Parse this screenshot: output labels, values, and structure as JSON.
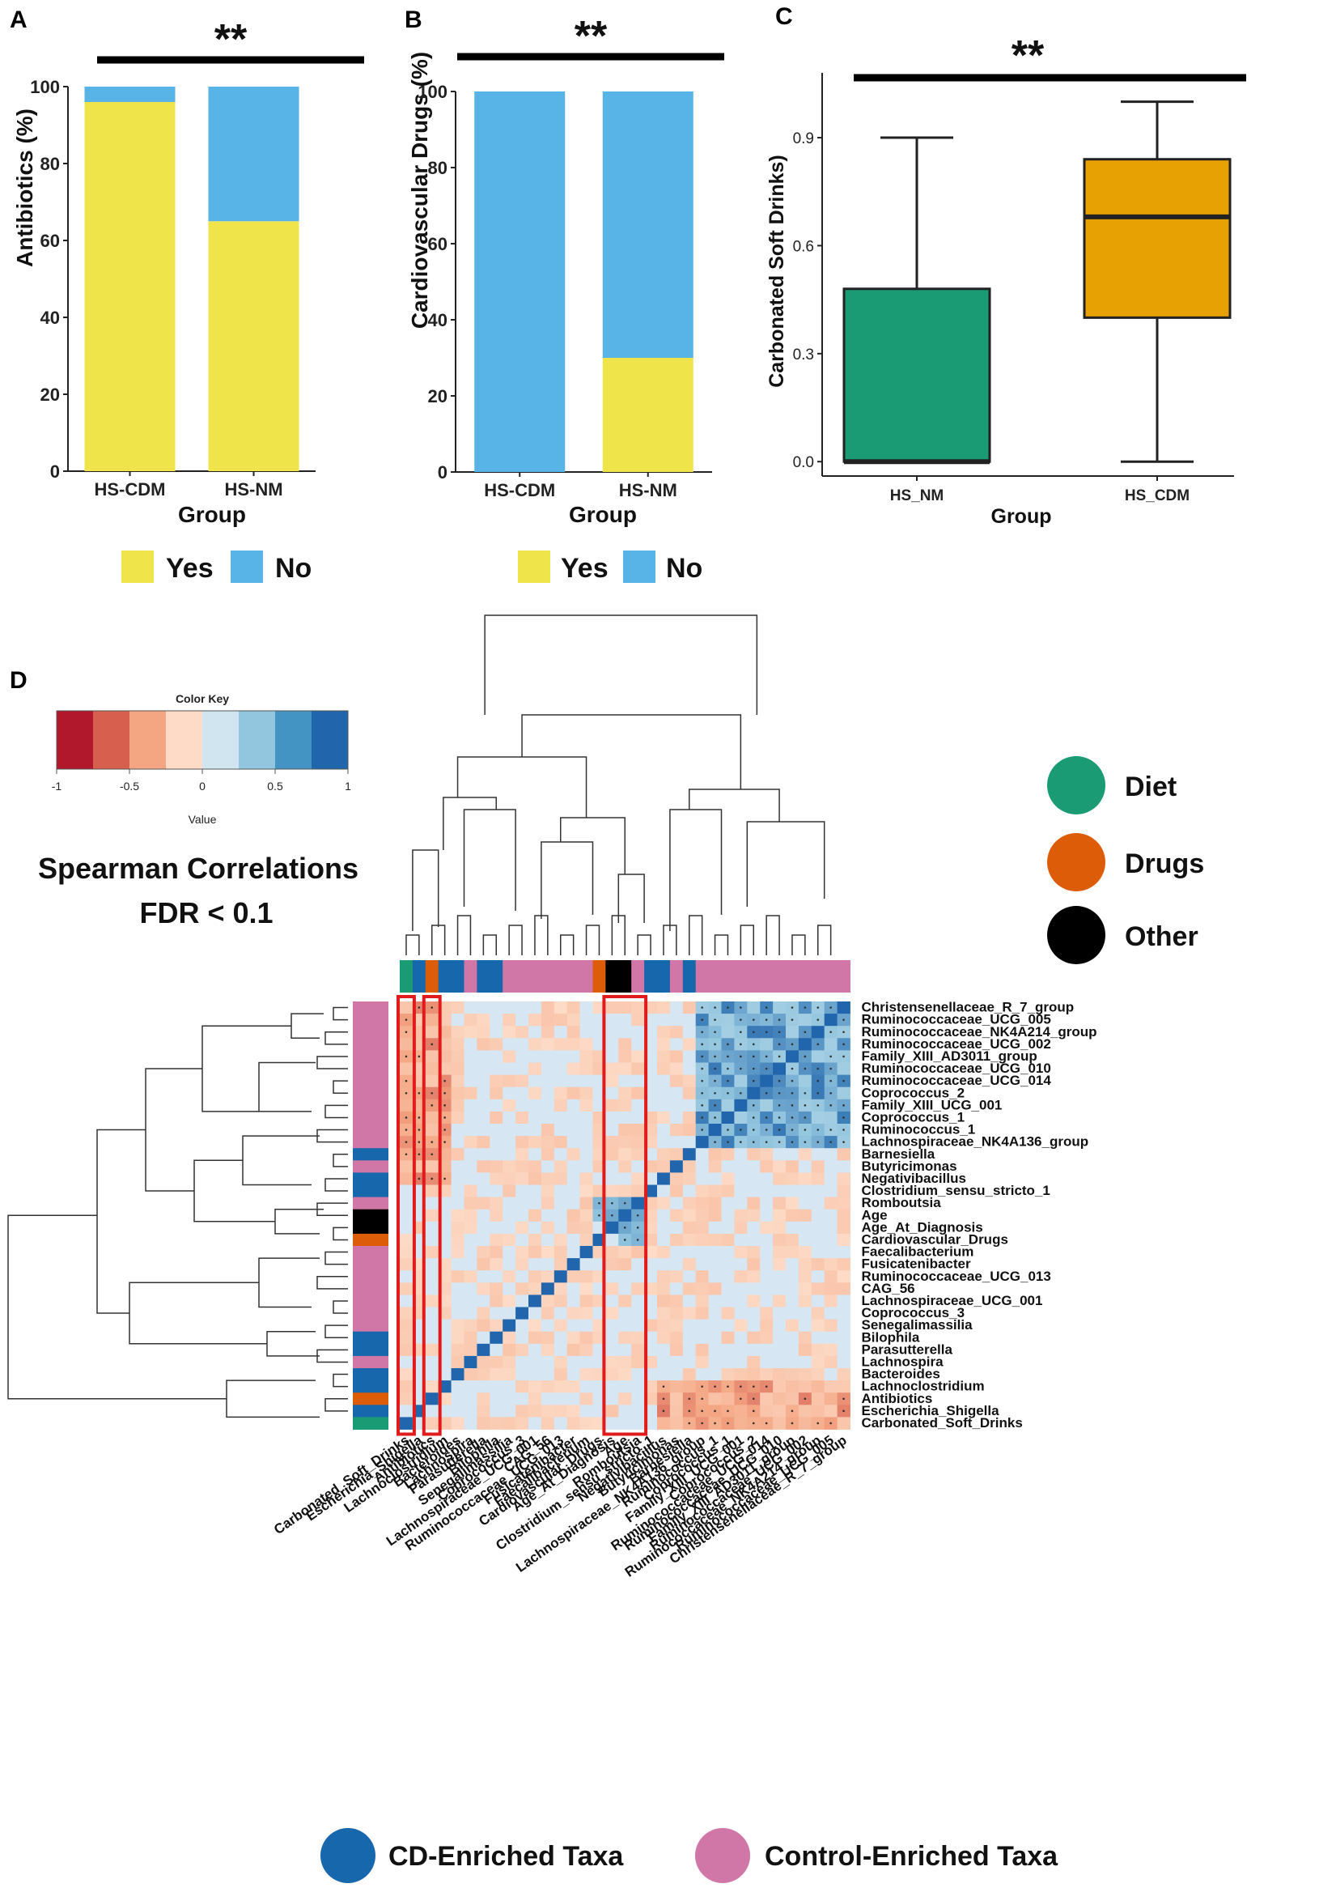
{
  "colors": {
    "yes": "#efe44a",
    "no": "#58b3e6",
    "hs_nm_box": "#1a9b73",
    "hs_cdm_box": "#e8a102",
    "diet": "#1a9b73",
    "drugs": "#dd5c07",
    "other": "#000000",
    "cd_enriched": "#1767ac",
    "control_enriched": "#d177a8",
    "highlight": "#e11b1b"
  },
  "chart_data": [
    {
      "panel": "A",
      "type": "bar",
      "stacked": true,
      "categories": [
        "HS-CDM",
        "HS-NM"
      ],
      "series": [
        {
          "name": "Yes",
          "values": [
            96,
            65
          ]
        },
        {
          "name": "No",
          "values": [
            4,
            35
          ]
        }
      ],
      "xlabel": "Group",
      "ylabel": "Antibiotics (%)",
      "ylim": [
        0,
        100
      ],
      "yticks": [
        "0",
        "20",
        "40",
        "60",
        "80",
        "100"
      ],
      "significance": "**",
      "legend": [
        "Yes",
        "No"
      ]
    },
    {
      "panel": "B",
      "type": "bar",
      "stacked": true,
      "categories": [
        "HS-CDM",
        "HS-NM"
      ],
      "series": [
        {
          "name": "Yes",
          "values": [
            0,
            30
          ]
        },
        {
          "name": "No",
          "values": [
            100,
            70
          ]
        }
      ],
      "xlabel": "Group",
      "ylabel": "Cardiovascular Drugs (%)",
      "ylim": [
        0,
        100
      ],
      "yticks": [
        "0",
        "20",
        "40",
        "60",
        "80",
        "100"
      ],
      "significance": "**",
      "legend": [
        "Yes",
        "No"
      ]
    },
    {
      "panel": "C",
      "type": "box",
      "categories": [
        "HS_NM",
        "HS_CDM"
      ],
      "boxes": [
        {
          "name": "HS_NM",
          "min": 0.0,
          "q1": 0.0,
          "median": 0.0,
          "q3": 0.48,
          "max": 0.9
        },
        {
          "name": "HS_CDM",
          "min": 0.0,
          "q1": 0.4,
          "median": 0.68,
          "q3": 0.84,
          "max": 1.0
        }
      ],
      "xlabel": "Group",
      "ylabel": "Carbonated Soft Drinks)",
      "ylim": [
        -0.04,
        1.08
      ],
      "yticks": [
        "0.0",
        "0.3",
        "0.6",
        "0.9"
      ],
      "significance": "**"
    },
    {
      "panel": "D",
      "type": "heatmap",
      "title_line1": "Spearman Correlations",
      "title_line2": "FDR < 0.1",
      "color_key_title": "Color Key",
      "color_key_axis": "Value",
      "color_key_ticks": [
        "-1",
        "-0.5",
        "0",
        "0.5",
        "1"
      ],
      "row_labels": [
        "Christensenellaceae_R_7_group",
        "Ruminococcaceae_UCG_005",
        "Ruminococcaceae_NK4A214_group",
        "Ruminococcaceae_UCG_002",
        "Family_XIII_AD3011_group",
        "Ruminococcaceae_UCG_010",
        "Ruminococcaceae_UCG_014",
        "Coprococcus_2",
        "Family_XIII_UCG_001",
        "Coprococcus_1",
        "Ruminococcus_1",
        "Lachnospiraceae_NK4A136_group",
        "Barnesiella",
        "Butyricimonas",
        "Negativibacillus",
        "Clostridium_sensu_stricto_1",
        "Romboutsia",
        "Age",
        "Age_At_Diagnosis",
        "Cardiovascular_Drugs",
        "Faecalibacterium",
        "Fusicatenibacter",
        "Ruminococcaceae_UCG_013",
        "CAG_56",
        "Lachnospiraceae_UCG_001",
        "Coprococcus_3",
        "Senegalimassilia",
        "Bilophila",
        "Parasutterella",
        "Lachnospira",
        "Bacteroides",
        "Lachnoclostridium",
        "Antibiotics",
        "Escherichia_Shigella",
        "Carbonated_Soft_Drinks"
      ],
      "column_labels": [
        "Carbonated_Soft_Drinks",
        "Escherichia_Shigella",
        "Antibiotics",
        "Lachnoclostridium",
        "Bacteroides",
        "Lachnospira",
        "Parasutterella",
        "Bilophila",
        "Senegalimassilia",
        "Coprococcus_3",
        "Lachnospiraceae_UCG_001",
        "CAG_56",
        "Ruminococcaceae_UCG_013",
        "Fusicatenibacter",
        "Faecalibacterium",
        "Cardiovascular_Drugs",
        "Age_At_Diagnosis",
        "Age",
        "Romboutsia",
        "Clostridium_sensu_stricto_1",
        "Negativibacillus",
        "Butyricimonas",
        "Barnesiella",
        "Lachnospiraceae_NK4A136_group",
        "Ruminococcus_1",
        "Coprococcus_1",
        "Family_XIII_UCG_001",
        "Coprococcus_2",
        "Ruminococcaceae_UCG_014",
        "Ruminococcaceae_UCG_010",
        "Family_XIII_AD3011_group",
        "Ruminococcaceae_UCG_002",
        "Ruminococcaceae_NK4A214_group",
        "Ruminococcaceae_UCG_005",
        "Christensenellaceae_R_7_group"
      ],
      "column_annotation": [
        "Diet",
        "CD-Enriched",
        "Drugs",
        "CD-Enriched",
        "CD-Enriched",
        "Control-Enriched",
        "CD-Enriched",
        "CD-Enriched",
        "Control-Enriched",
        "Control-Enriched",
        "Control-Enriched",
        "Control-Enriched",
        "Control-Enriched",
        "Control-Enriched",
        "Control-Enriched",
        "Drugs",
        "Other",
        "Other",
        "Control-Enriched",
        "CD-Enriched",
        "CD-Enriched",
        "Control-Enriched",
        "CD-Enriched",
        "Control-Enriched",
        "Control-Enriched",
        "Control-Enriched",
        "Control-Enriched",
        "Control-Enriched",
        "Control-Enriched",
        "Control-Enriched",
        "Control-Enriched",
        "Control-Enriched",
        "Control-Enriched",
        "Control-Enriched",
        "Control-Enriched"
      ],
      "highlighted_columns": [
        "Carbonated_Soft_Drinks",
        "Antibiotics",
        "Age_At_Diagnosis",
        "Age",
        "Romboutsia"
      ],
      "value_range": [
        -1,
        1
      ],
      "legend": [
        "Diet",
        "Drugs",
        "Other"
      ],
      "bottom_legend": [
        "CD-Enriched Taxa",
        "Control-Enriched Taxa"
      ]
    }
  ]
}
